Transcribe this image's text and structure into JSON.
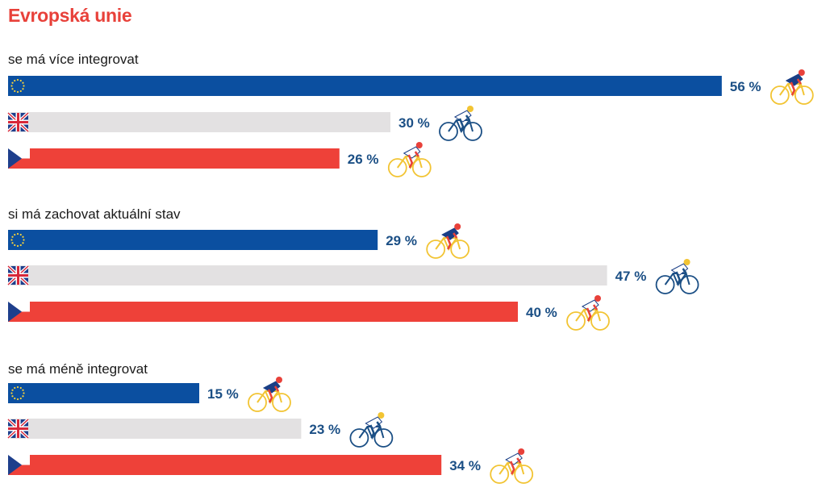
{
  "chart_data": {
    "type": "bar",
    "title": "Evropská unie",
    "colors": {
      "eu": "#0b4fa0",
      "uk": "#e3e1e2",
      "cz": "#ee4139",
      "label": "#1b4f85",
      "title": "#e8413a"
    },
    "series": [
      {
        "flag": "eu-flag",
        "values": [
          56,
          29,
          15
        ]
      },
      {
        "flag": "uk-flag",
        "values": [
          30,
          47,
          23
        ]
      },
      {
        "flag": "cz-flag",
        "values": [
          26,
          40,
          34
        ]
      }
    ],
    "groups": [
      {
        "label": "se má více integrovat",
        "values": [
          56,
          30,
          26
        ],
        "value_labels": [
          "56 %",
          "30 %",
          "26 %"
        ]
      },
      {
        "label": "si má zachovat aktuální stav",
        "values": [
          29,
          47,
          40
        ],
        "value_labels": [
          "29 %",
          "47 %",
          "40 %"
        ]
      },
      {
        "label": "se má méně integrovat",
        "values": [
          15,
          23,
          34
        ],
        "value_labels": [
          "15 %",
          "23 %",
          "34 %"
        ]
      }
    ],
    "value_unit": "%",
    "icons": [
      "cyclist-icon"
    ],
    "grid": false,
    "legend": "none"
  }
}
